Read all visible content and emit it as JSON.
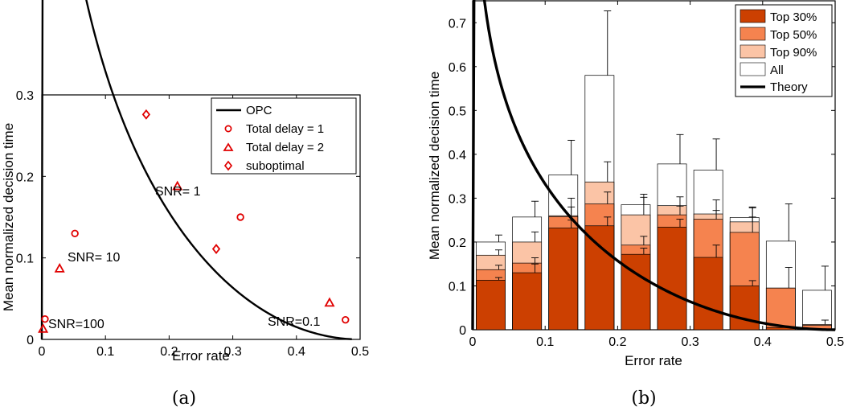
{
  "chart_data": [
    {
      "panel_label": "(a)",
      "type": "scatter",
      "xlabel": "Error rate",
      "ylabel": "Mean normalized decision time",
      "xlim": [
        0,
        0.5
      ],
      "ylim": [
        0,
        0.3
      ],
      "xticks": [
        "0",
        "0.1",
        "0.2",
        "0.3",
        "0.4",
        "0.5"
      ],
      "yticks": [
        "0",
        "0.1",
        "0.2",
        "0.3"
      ],
      "legend": [
        "OPC",
        "Total delay = 1",
        "Total delay = 2",
        "suboptimal"
      ],
      "annotations": [
        "SNR=100",
        "SNR= 10",
        "SNR= 1",
        "SNR=0.1"
      ],
      "series": [
        {
          "name": "OPC",
          "kind": "curve",
          "x_range": [
            0,
            0.487
          ]
        },
        {
          "name": "Total delay = 1",
          "marker": "circle",
          "points": [
            [
              0.005,
              0.025
            ],
            [
              0.052,
              0.13
            ],
            [
              0.312,
              0.15
            ],
            [
              0.477,
              0.024
            ]
          ]
        },
        {
          "name": "Total delay = 2",
          "marker": "triangle",
          "points": [
            [
              0.002,
              0.013
            ],
            [
              0.028,
              0.087
            ],
            [
              0.213,
              0.188
            ],
            [
              0.452,
              0.045
            ]
          ]
        },
        {
          "name": "suboptimal",
          "marker": "diamond",
          "points": [
            [
              0.164,
              0.276
            ],
            [
              0.274,
              0.111
            ]
          ]
        }
      ],
      "color": "#e00000"
    },
    {
      "panel_label": "(b)",
      "type": "bar",
      "xlabel": "Error rate",
      "ylabel": "Mean normalized decision time",
      "xlim": [
        0,
        0.5
      ],
      "ylim": [
        0,
        0.75
      ],
      "xticks": [
        "0",
        "0.1",
        "0.2",
        "0.3",
        "0.4",
        "0.5"
      ],
      "yticks": [
        "0",
        "0.1",
        "0.2",
        "0.3",
        "0.4",
        "0.5",
        "0.6",
        "0.7"
      ],
      "legend": [
        "Top 30%",
        "Top 50%",
        "Top 90%",
        "All",
        "Theory"
      ],
      "bin_centers": [
        0.025,
        0.075,
        0.125,
        0.175,
        0.225,
        0.275,
        0.325,
        0.375,
        0.425,
        0.475
      ],
      "bin_width": 0.04,
      "series": [
        {
          "name": "All",
          "color": "#ffffff",
          "values": [
            0.2,
            0.257,
            0.353,
            0.58,
            0.285,
            0.378,
            0.364,
            0.256,
            0.202,
            0.09
          ],
          "errors": [
            0.016,
            0.036,
            0.079,
            0.147,
            0.024,
            0.067,
            0.071,
            0.024,
            0.085,
            0.055
          ]
        },
        {
          "name": "Top 90%",
          "color": "#fbc4a6",
          "values": [
            0.17,
            0.2,
            0.26,
            0.337,
            0.262,
            0.283,
            0.264,
            0.246,
            0.095,
            0.012
          ],
          "errors": [
            0.012,
            0.023,
            0.04,
            0.046,
            0.04,
            0.02,
            0.032,
            0.032,
            0.047,
            0.01
          ]
        },
        {
          "name": "Top 50%",
          "color": "#f5834f",
          "values": [
            0.137,
            0.152,
            0.258,
            0.287,
            0.193,
            0.262,
            0.252,
            0.222,
            0.095,
            0.01
          ],
          "errors": [
            0.01,
            0.012,
            0.022,
            0.027,
            0.02,
            0.02,
            0.02,
            0.035,
            0.0,
            0.0
          ]
        },
        {
          "name": "Top 30%",
          "color": "#cc4001",
          "values": [
            0.113,
            0.13,
            0.232,
            0.237,
            0.172,
            0.234,
            0.165,
            0.1,
            0.005,
            0.002
          ],
          "errors": [
            0.006,
            0.02,
            0.018,
            0.02,
            0.014,
            0.018,
            0.028,
            0.012,
            0.0,
            0.0
          ]
        }
      ],
      "theory": {
        "name": "Theory",
        "kind": "curve",
        "x_range": [
          0,
          0.5
        ],
        "peak": [
          0.17,
          0.192
        ]
      }
    }
  ]
}
